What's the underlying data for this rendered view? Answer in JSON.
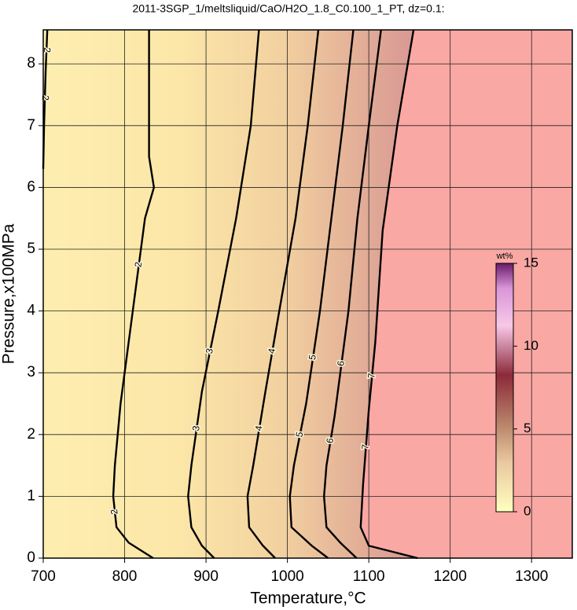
{
  "chart_data": {
    "type": "contour",
    "title": "2011-3SGP_1/meltsliquid/CaO/H2O_1.8_C0.100_1_PT, dz=0.1:",
    "x_label": "Temperature,°C",
    "y_label": "Pressure,x100MPa",
    "xlim": [
      700,
      1350
    ],
    "ylim": [
      0,
      8.55
    ],
    "xticks": [
      700,
      800,
      900,
      1000,
      1100,
      1200,
      1300
    ],
    "yticks": [
      0,
      1,
      2,
      3,
      4,
      5,
      6,
      7,
      8
    ],
    "grid": true,
    "contours": [
      {
        "level": 2,
        "x": [
          700,
          701,
          703,
          705
        ],
        "y": [
          6.3,
          7.0,
          7.9,
          8.55
        ]
      },
      {
        "level": 2,
        "x": [
          830,
          830,
          836,
          825,
          810,
          795,
          788,
          786,
          790,
          805,
          835
        ],
        "y": [
          8.55,
          6.5,
          6.0,
          5.5,
          4.0,
          2.5,
          1.5,
          1.0,
          0.5,
          0.25,
          0
        ]
      },
      {
        "level": 3,
        "x": [
          965,
          955,
          937,
          915,
          895,
          882,
          878,
          882,
          895,
          910
        ],
        "y": [
          8.55,
          7,
          5.5,
          4,
          2.7,
          1.5,
          1.0,
          0.5,
          0.2,
          0
        ]
      },
      {
        "level": 4,
        "x": [
          1038,
          1025,
          1010,
          990,
          973,
          958,
          951,
          953,
          970,
          985
        ],
        "y": [
          8.55,
          7,
          5.5,
          4,
          2.7,
          1.5,
          1.0,
          0.5,
          0.2,
          0
        ]
      },
      {
        "level": 5,
        "x": [
          1081,
          1068,
          1054,
          1040,
          1023,
          1008,
          1003,
          1005,
          1030,
          1050
        ],
        "y": [
          8.55,
          7,
          5.5,
          4,
          2.5,
          1.5,
          1.0,
          0.5,
          0.2,
          0
        ]
      },
      {
        "level": 6,
        "x": [
          1115,
          1100,
          1086,
          1075,
          1058,
          1048,
          1045,
          1048,
          1065,
          1085
        ],
        "y": [
          8.55,
          7,
          5.5,
          4,
          2.3,
          1.5,
          1.0,
          0.5,
          0.25,
          0
        ]
      },
      {
        "level": 7,
        "x": [
          1155,
          1135,
          1117,
          1108,
          1100,
          1093,
          1090,
          1100,
          1130,
          1160
        ],
        "y": [
          8.55,
          7,
          5.3,
          3.5,
          2.4,
          1.2,
          0.5,
          0.2,
          0.1,
          0
        ]
      }
    ],
    "colorbar": {
      "label": "wt%",
      "lim": [
        0,
        15
      ],
      "ticks": [
        0,
        5,
        10,
        15
      ]
    }
  }
}
